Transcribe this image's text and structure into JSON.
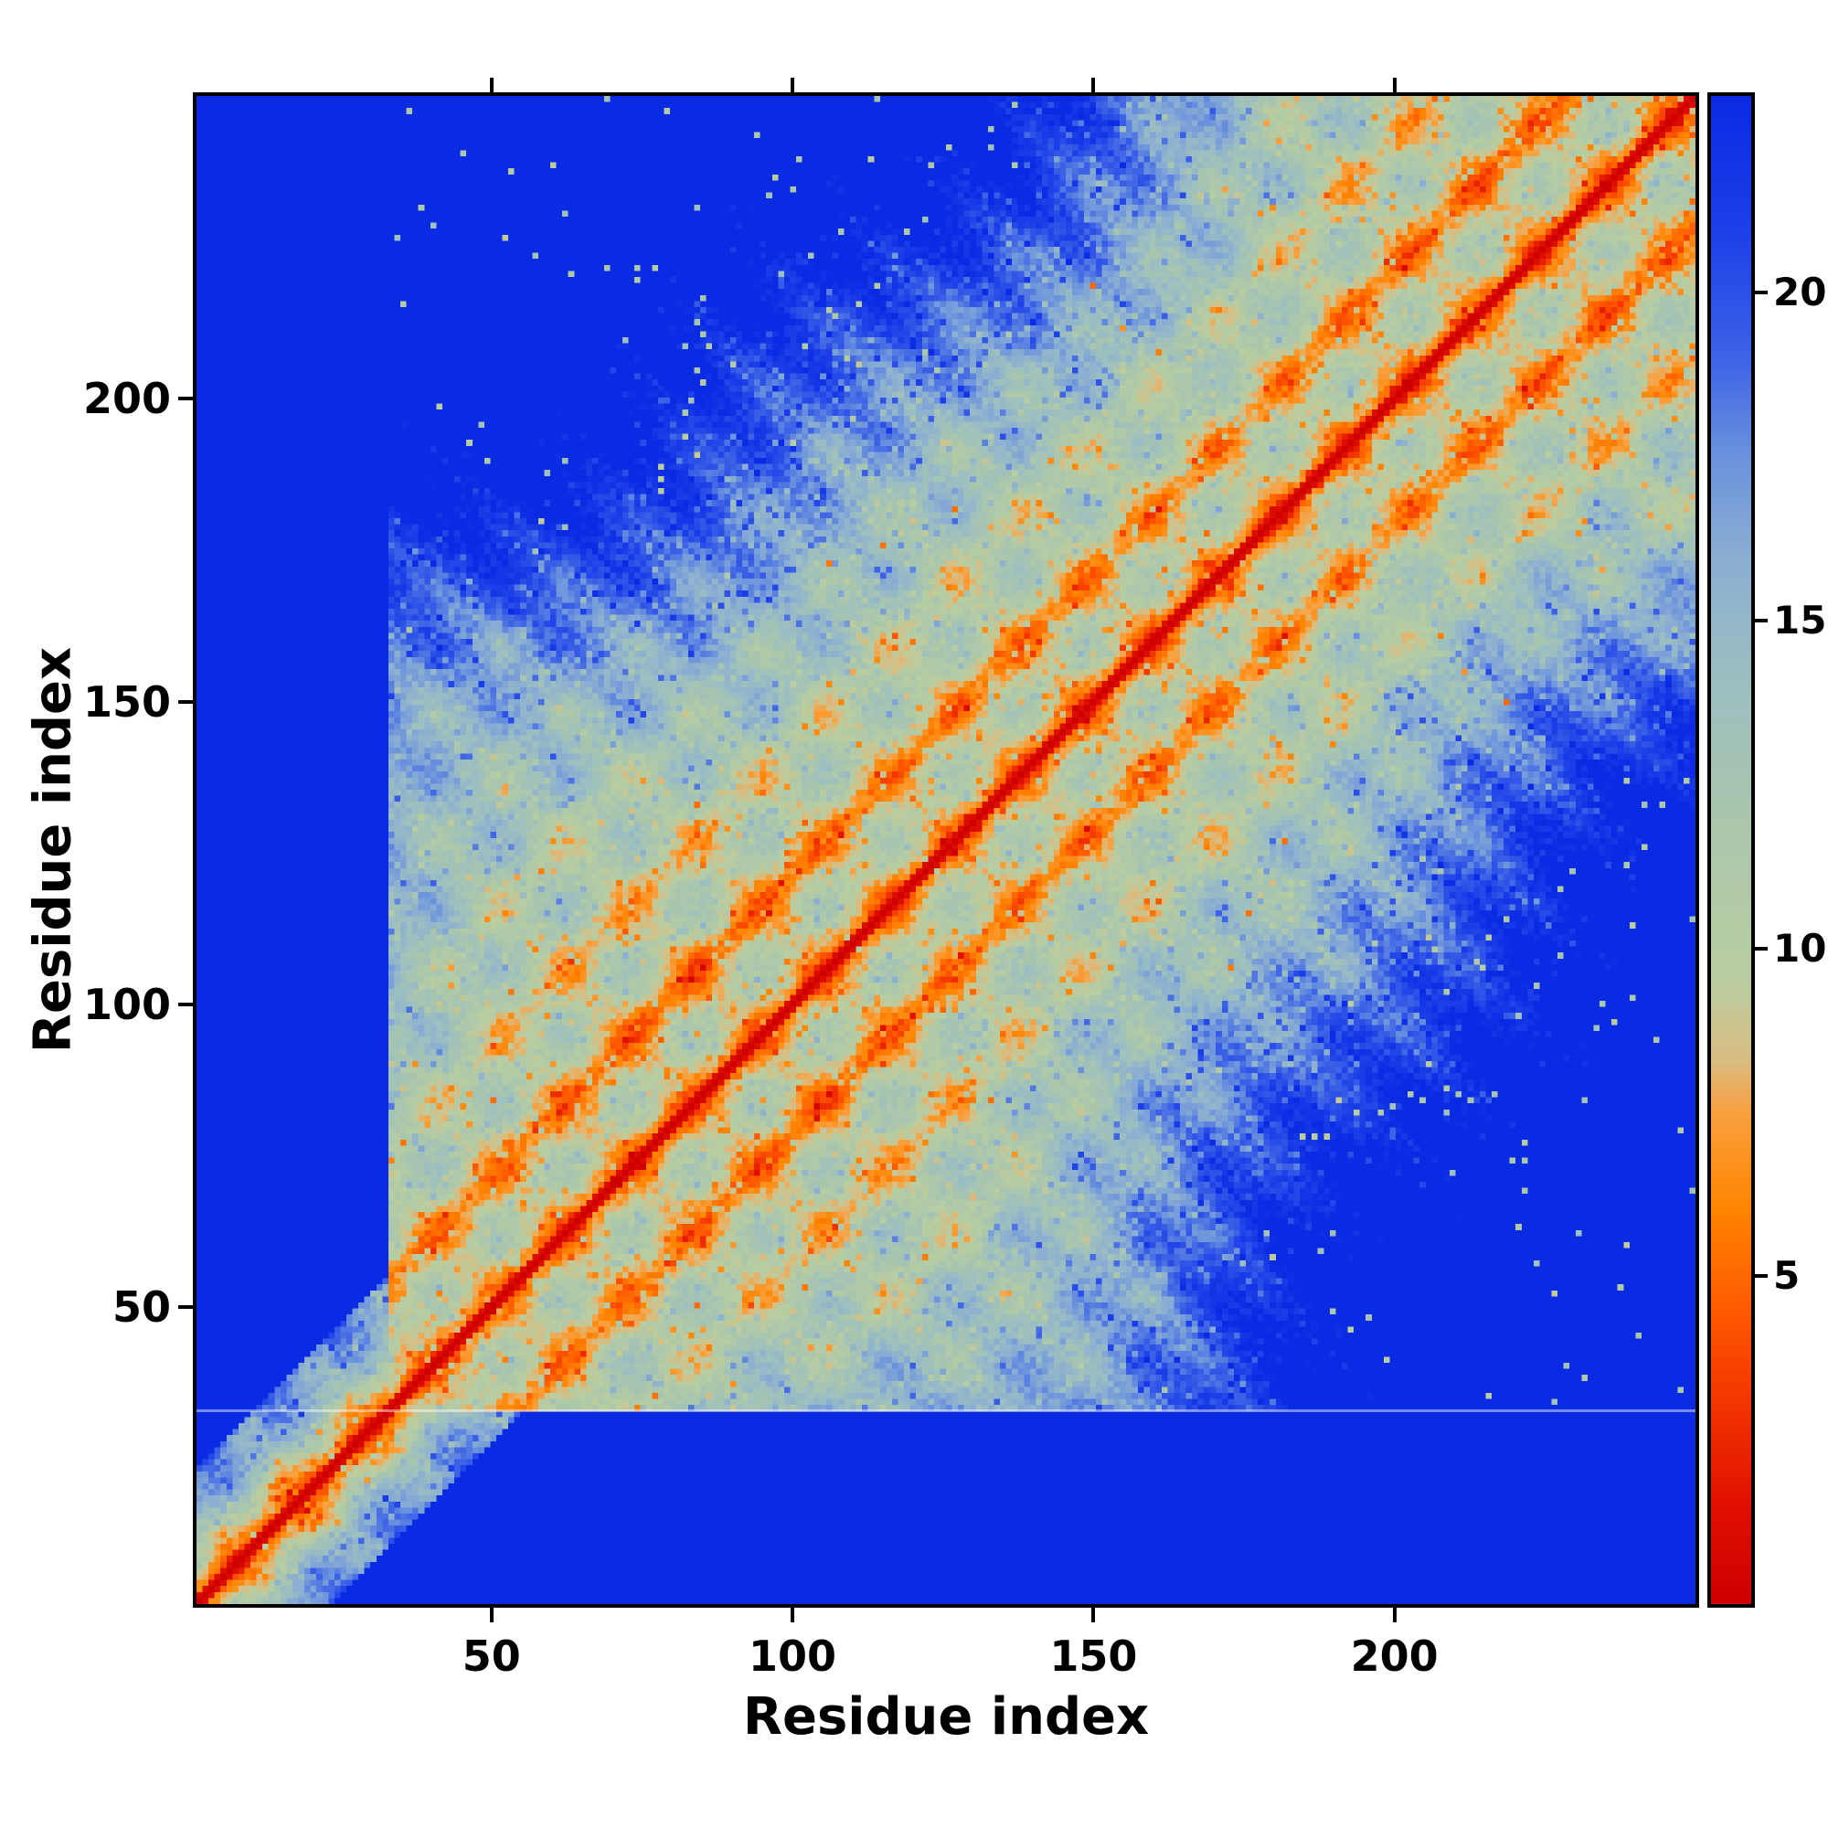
{
  "figure": {
    "background_color": "#ffffff",
    "frame_color": "#000000",
    "text_color": "#000000"
  },
  "chart_data": {
    "type": "heatmap",
    "title": "",
    "xlabel": "Residue index",
    "ylabel": "Residue index",
    "x_range": [
      1,
      250
    ],
    "y_range": [
      1,
      250
    ],
    "x_ticks": [
      50,
      100,
      150,
      200
    ],
    "y_ticks": [
      50,
      100,
      150,
      200
    ],
    "value_range": [
      0,
      23
    ],
    "colorbar_ticks": [
      5,
      10,
      15,
      20
    ],
    "colorbar_side": "right",
    "colormap_name": "reversed-jet style: red (low) -> orange -> pale green -> light blue -> deep blue (high)",
    "colormap_stops": [
      [
        0.0,
        "#cc0000"
      ],
      [
        1.5,
        "#e01000"
      ],
      [
        3.0,
        "#f23300"
      ],
      [
        4.5,
        "#ff5a00"
      ],
      [
        6.0,
        "#ff8400"
      ],
      [
        7.5,
        "#f9a03f"
      ],
      [
        8.3,
        "#d8bd82"
      ],
      [
        9.5,
        "#b9cda0"
      ],
      [
        12.0,
        "#a9c6ad"
      ],
      [
        14.0,
        "#9dbfc0"
      ],
      [
        16.0,
        "#8aaed2"
      ],
      [
        17.5,
        "#6b92dd"
      ],
      [
        19.0,
        "#3d63e6"
      ],
      [
        21.0,
        "#1b3fe8"
      ],
      [
        23.0,
        "#0a2be4"
      ]
    ],
    "description": "Symmetric residue-residue distance map of a ~250-residue repeat protein. Red main diagonal (distance 0) flanked by orange, with periodic orange/green bands parallel to the diagonal at sequence separations of ~22 residues and its multiples (helical repeat), fading through pale green and light blue to a deep blue background where distances reach the ~23 cap. Residues 1-32 form a segment with no long-range contacts (blue lower-left band); a faint pale horizontal boundary line crosses the map at residue ~33.",
    "key_values": {
      "diagonal_value": 0,
      "repeat_period_residues": 22,
      "first_off_diagonal_band_value": 5,
      "background_cap_value": 23,
      "segment_boundary_residue": 33
    },
    "generator": {
      "n": 250,
      "seed": 11,
      "period": 21.7,
      "rise": 0.17,
      "radius": 6.0,
      "blob": 3.0,
      "vmax": 23,
      "segment_break": 32
    }
  }
}
